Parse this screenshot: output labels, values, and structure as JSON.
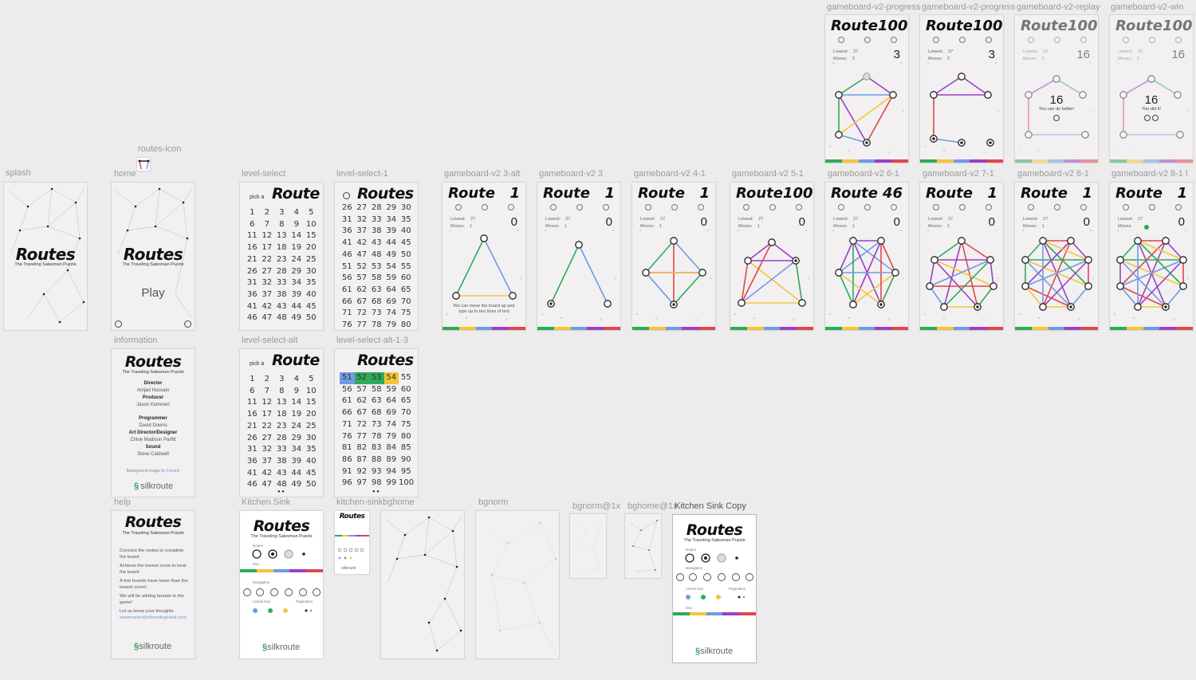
{
  "labels": {
    "splash": "splash",
    "home": "home",
    "routes_icon": "routes-icon",
    "level_select": "level-select",
    "level_select_1": "level-select-1",
    "gb3alt": "gameboard-v2 3-alt",
    "gb3": "gameboard-v2 3",
    "gb41": "gameboard-v2 4-1",
    "gb51": "gameboard-v2 5-1",
    "gb61": "gameboard-v2 6-1",
    "gb71": "gameboard-v2 7-1",
    "gb81": "gameboard-v2 8-1",
    "gb81b": "gameboard-v2 8-1 l",
    "prog1": "gameboard-v2-progress",
    "prog2": "gameboard-v2-progress",
    "replay": "gameboard-v2-replay",
    "win": "gameboard-v2-win",
    "information": "information",
    "level_select_alt": "level-select-alt",
    "level_select_alt_13": "level-select-alt-1-3",
    "help": "help",
    "kitchen_sink": "Kitchen Sink",
    "kitchen_sink_small": "kitchen-sink",
    "bghome": "bghome",
    "bgnorm": "bgnorm",
    "bgnorm1x": "bgnorm@1x",
    "bghome1x": "bghome@1x",
    "kitchen_sink_copy": "Kitchen Sink Copy"
  },
  "brand": {
    "title": "Routes",
    "subtitle": "The Traveling Salesman Puzzle",
    "play": "Play",
    "logo": "silkroute"
  },
  "level_select": {
    "prefix": "pick a",
    "title": "Route"
  },
  "gameboards": {
    "gb3alt": {
      "title": "Route",
      "num": "1",
      "lowest": "27",
      "moves": "1",
      "count": "0",
      "hint": "We can move the board up and type up to two lines of text"
    },
    "gb3": {
      "title": "Route",
      "num": "1",
      "lowest": "27",
      "moves": "1",
      "count": "0"
    },
    "gb41": {
      "title": "Route",
      "num": "1",
      "lowest": "27",
      "moves": "1",
      "count": "0"
    },
    "gb51": {
      "title": "Route",
      "num": "100",
      "lowest": "27",
      "moves": "1",
      "count": "0"
    },
    "gb61": {
      "title": "Route",
      "num": "46",
      "lowest": "27",
      "moves": "1",
      "count": "0"
    },
    "gb71": {
      "title": "Route",
      "num": "1",
      "lowest": "27",
      "moves": "1",
      "count": "0"
    },
    "gb81": {
      "title": "Route",
      "num": "1",
      "lowest": "27",
      "moves": "1",
      "count": "0"
    },
    "gb81b": {
      "title": "Route",
      "num": "1",
      "lowest": "27",
      "moves": "",
      "count": "0"
    },
    "prog1": {
      "title": "Route",
      "num": "100",
      "lowest": "27",
      "moves": "2",
      "count": "3"
    },
    "prog2": {
      "title": "Route",
      "num": "100",
      "lowest": "27",
      "moves": "2",
      "count": "3"
    },
    "replay": {
      "title": "Route",
      "num": "100",
      "lowest": "10",
      "moves": "2",
      "count": "16",
      "big": "16",
      "msg": "You can do better!"
    },
    "win": {
      "title": "Route",
      "num": "100",
      "lowest": "10",
      "moves": "2",
      "count": "16",
      "big": "16",
      "msg": "You did it!"
    }
  },
  "stat_labels": {
    "lowest": "Lowest:",
    "moves": "Moves:"
  },
  "information": {
    "director_h": "Director",
    "director": "Amjad Hussain",
    "producer_h": "Producer",
    "producer": "Jason Kummerl",
    "programmer_h": "Programmer",
    "programmer": "David Downs",
    "art_h": "Art Director/Designer",
    "art": "Chloe Madison Parfitt",
    "sound_h": "Sound",
    "sound": "Steve Caldwell",
    "bg_credit": "Background image by",
    "bg_credit_link": "Freepik"
  },
  "help": {
    "lines": [
      "Connect the nodes to complete the board",
      "Achieve the lowest score to beat the board",
      "A few boards have lower than the lowest score!",
      "We will be adding boards to the game!",
      "Let us know your thoughts"
    ],
    "email": "webmaster@silkrouteglobal.com"
  },
  "kitchen": {
    "nodes": "Nodes",
    "key": "Key",
    "navigation": "Navigation",
    "levels_key": "Levels Key",
    "pagination": "Pagination"
  },
  "colors": {
    "green": "#2eaa5c",
    "yellow": "#f5c53a",
    "blue": "#6f9ae6",
    "purple": "#9b3fc8",
    "red": "#e0464b"
  }
}
